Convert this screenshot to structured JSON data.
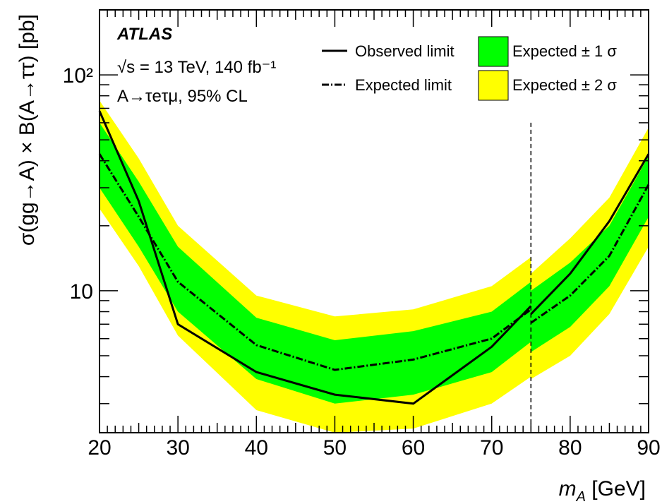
{
  "chart_data": {
    "type": "area",
    "title": "",
    "experiment": "ATLAS",
    "info_lines": [
      "√s = 13 TeV, 140 fb⁻¹",
      "A→τeτμ, 95% CL"
    ],
    "xlabel": "m_A [GeV]",
    "ylabel": "σ(gg→A) × B(A→ττ) [pb]",
    "xlim": [
      20,
      90
    ],
    "ylim": [
      2.2,
      200
    ],
    "yscale": "log",
    "x_tick_labels": [
      "20",
      "30",
      "40",
      "50",
      "60",
      "70",
      "80",
      "90"
    ],
    "y_tick_labels": [
      {
        "value": 10,
        "label": "10"
      },
      {
        "value": 100,
        "label": "10²"
      }
    ],
    "legend_position": "top-right",
    "legend": {
      "observed": "Observed limit",
      "expected": "Expected limit",
      "band1": "Expected ± 1 σ",
      "band2": "Expected ± 2 σ"
    },
    "colors": {
      "band1": "#00ff00",
      "band2": "#ffff00",
      "line": "#000000"
    },
    "reference_line_x": 75,
    "segments": [
      {
        "x": [
          20,
          25,
          30,
          40,
          50,
          60,
          70,
          75
        ],
        "observed": [
          68,
          26,
          7.0,
          4.2,
          3.3,
          3.0,
          5.5,
          8.5
        ],
        "expected": [
          43,
          22,
          11,
          5.6,
          4.3,
          4.8,
          6.0,
          8.2
        ],
        "band1_low": [
          30,
          16,
          8.0,
          3.9,
          3.0,
          3.3,
          4.2,
          5.8
        ],
        "band1_high": [
          60,
          32,
          16,
          7.5,
          5.9,
          6.5,
          8.0,
          11.0
        ],
        "band2_low": [
          24,
          13,
          6.2,
          2.8,
          2.2,
          2.3,
          3.0,
          4.0
        ],
        "band2_high": [
          76,
          41,
          20,
          9.5,
          7.6,
          8.2,
          10.5,
          14.3
        ]
      },
      {
        "x": [
          75,
          80,
          85,
          90
        ],
        "observed": [
          7.8,
          12,
          21,
          43
        ],
        "expected": [
          7.1,
          9.5,
          14.5,
          31
        ],
        "band1_low": [
          5.2,
          6.8,
          10.5,
          22
        ],
        "band1_high": [
          10.0,
          13.5,
          20,
          42
        ],
        "band2_low": [
          3.9,
          5.0,
          7.8,
          16
        ],
        "band2_high": [
          12.0,
          17.5,
          27,
          57
        ]
      }
    ]
  }
}
